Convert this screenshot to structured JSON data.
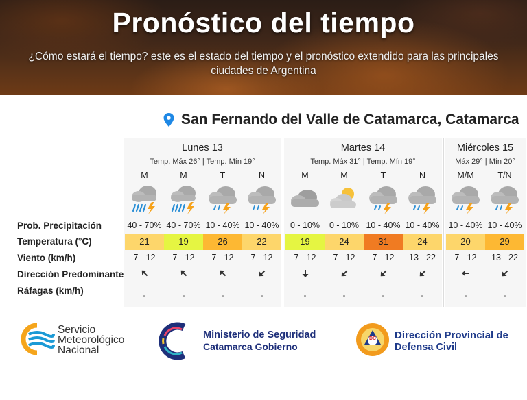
{
  "header": {
    "title": "Pronóstico del tiempo",
    "subtitle": "¿Cómo estará el tiempo? este es el estado del tiempo y el pronóstico extendido para las principales ciudades de Argentina"
  },
  "location": {
    "name": "San Fernando del Valle de Catamarca, Catamarca",
    "icon": "map-pin-icon"
  },
  "row_labels": {
    "precip": "Prob. Precipitación",
    "temp": "Temperatura (°C)",
    "wind": "Viento (km/h)",
    "direction": "Dirección Predominante",
    "gusts": "Ráfagas (km/h)"
  },
  "days": [
    {
      "name": "Lunes 13",
      "temps": "Temp. Máx 26° | Temp. Mín 19°",
      "periods": [
        {
          "label": "M",
          "icon": "rain-storm-icon",
          "precip": "40 - 70%",
          "temp": "21",
          "temp_color": "#fdd66b",
          "wind": "7 - 12",
          "direction": "arrow-up-left-icon",
          "gust": "-"
        },
        {
          "label": "M",
          "icon": "rain-storm-icon",
          "precip": "40 - 70%",
          "temp": "19",
          "temp_color": "#e5f542",
          "wind": "7 - 12",
          "direction": "arrow-up-left-icon",
          "gust": "-"
        },
        {
          "label": "T",
          "icon": "cloud-storm-icon",
          "precip": "10 - 40%",
          "temp": "26",
          "temp_color": "#fdb833",
          "wind": "7 - 12",
          "direction": "arrow-up-left-icon",
          "gust": "-"
        },
        {
          "label": "N",
          "icon": "cloud-storm-icon",
          "precip": "10 - 40%",
          "temp": "22",
          "temp_color": "#fdd66b",
          "wind": "7 - 12",
          "direction": "arrow-down-left-icon",
          "gust": "-"
        }
      ]
    },
    {
      "name": "Martes 14",
      "temps": "Temp. Máx 31° | Temp. Mín 19°",
      "periods": [
        {
          "label": "M",
          "icon": "cloudy-icon",
          "precip": "0 - 10%",
          "temp": "19",
          "temp_color": "#e5f542",
          "wind": "7 - 12",
          "direction": "arrow-down-icon",
          "gust": "-"
        },
        {
          "label": "M",
          "icon": "partly-cloudy-icon",
          "precip": "0 - 10%",
          "temp": "24",
          "temp_color": "#fdd66b",
          "wind": "7 - 12",
          "direction": "arrow-down-left-icon",
          "gust": "-"
        },
        {
          "label": "T",
          "icon": "cloud-storm-icon",
          "precip": "10 - 40%",
          "temp": "31",
          "temp_color": "#f07b22",
          "wind": "7 - 12",
          "direction": "arrow-down-left-icon",
          "gust": "-"
        },
        {
          "label": "N",
          "icon": "cloud-storm-icon",
          "precip": "10 - 40%",
          "temp": "24",
          "temp_color": "#fdd66b",
          "wind": "13 - 22",
          "direction": "arrow-down-left-icon",
          "gust": "-"
        }
      ]
    },
    {
      "name": "Miércoles 15",
      "temps": "Máx 29° | Mín 20°",
      "periods": [
        {
          "label": "M/M",
          "icon": "cloud-storm-icon",
          "precip": "10 - 40%",
          "temp": "20",
          "temp_color": "#fdd66b",
          "wind": "7 - 12",
          "direction": "arrow-left-icon",
          "gust": "-"
        },
        {
          "label": "T/N",
          "icon": "cloud-storm-icon",
          "precip": "10 - 40%",
          "temp": "29",
          "temp_color": "#fdb833",
          "wind": "13 - 22",
          "direction": "arrow-down-left-icon",
          "gust": "-"
        }
      ]
    }
  ],
  "footer": {
    "smn": [
      "Servicio",
      "Meteorológico",
      "Nacional"
    ],
    "ministerio": [
      "Ministerio de Seguridad",
      "Catamarca Gobierno"
    ],
    "defensa": [
      "Dirección Provincial de",
      "Defensa Civil"
    ],
    "defensa_badge": "DC",
    "colors": {
      "smn_blue": "#1b9ad6",
      "smn_yellow": "#f5a51c",
      "ministerio_blue": "#1e2f7a",
      "defensa_blue": "#1e3a8a",
      "defensa_orange": "#f29b1d"
    }
  }
}
